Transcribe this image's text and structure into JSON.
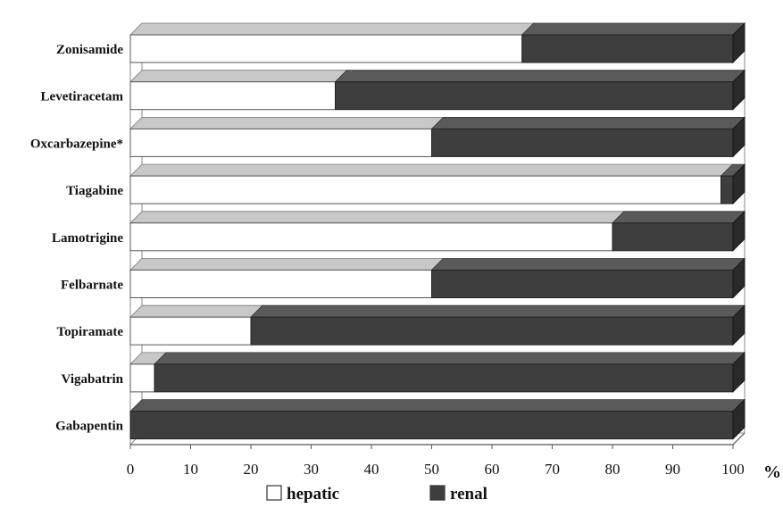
{
  "chart_data": {
    "type": "bar",
    "stacked": true,
    "orientation": "horizontal",
    "style": "3d",
    "categories": [
      "Zonisamide",
      "Levetiracetam",
      "Oxcarbazepine*",
      "Tiagabine",
      "Lamotrigine",
      "Felbarnate",
      "Topiramate",
      "Vigabatrin",
      "Gabapentin"
    ],
    "series": [
      {
        "name": "hepatic",
        "values": [
          65,
          34,
          50,
          98,
          80,
          50,
          20,
          4,
          0
        ],
        "color": "#ffffff"
      },
      {
        "name": "renal",
        "values": [
          35,
          66,
          50,
          2,
          20,
          50,
          80,
          96,
          100
        ],
        "color": "#3e3e3e"
      }
    ],
    "xlim": [
      0,
      100
    ],
    "xticks": [
      0,
      10,
      20,
      30,
      40,
      50,
      60,
      70,
      80,
      90,
      100
    ],
    "xunit": "%",
    "grid": false,
    "legend": "bottom-center",
    "colors": {
      "hepatic_top": "#c8c8c8",
      "renal_top": "#5a5a5a",
      "renal_side": "#2a2a2a",
      "frame": "#888888"
    }
  }
}
